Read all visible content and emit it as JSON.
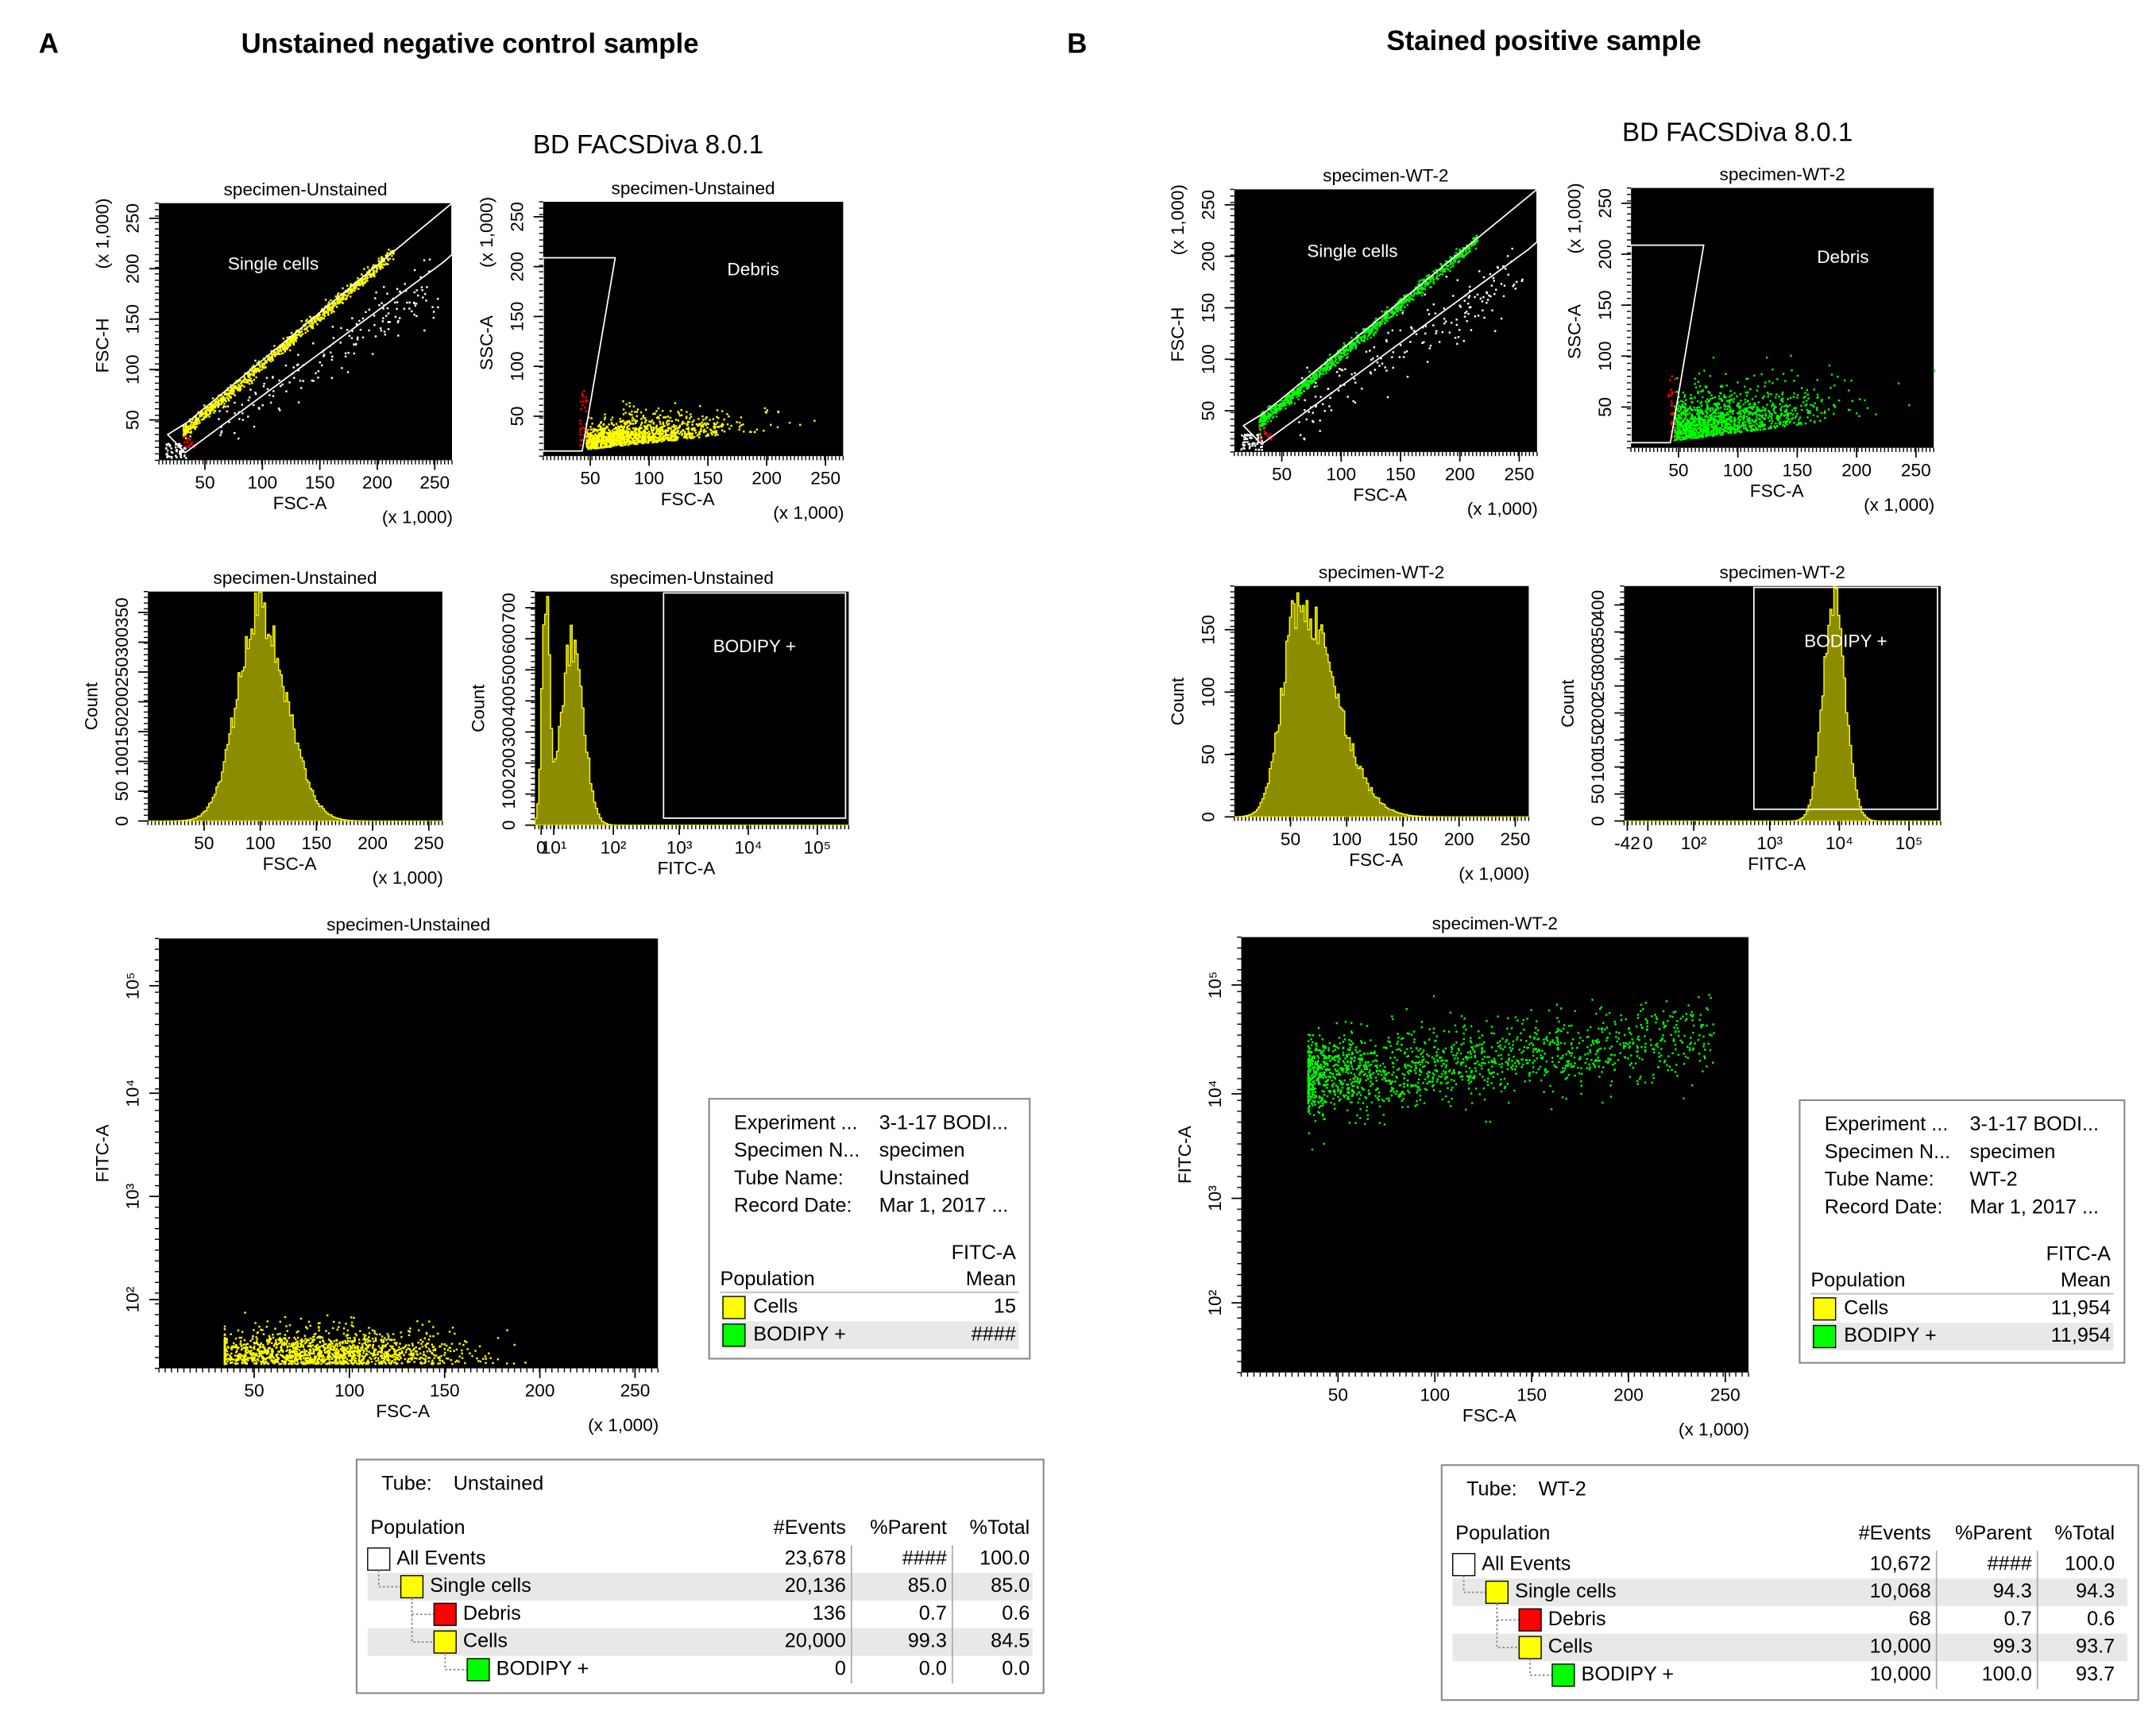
{
  "panels": [
    {
      "letter": "A",
      "title": "Unstained negative control sample",
      "software": "BD FACSDiva 8.0.1",
      "event_color": "#ffff00",
      "plots": [
        {
          "title": "specimen-Unstained",
          "xlabel": "FSC-A",
          "ylabel": "FSC-H",
          "xscale": "(x 1,000)",
          "yscale": "(x 1,000)",
          "xticks": [
            "50",
            "100",
            "150",
            "200",
            "250"
          ],
          "yticks": [
            "50",
            "100",
            "150",
            "200",
            "250"
          ],
          "gate": "Single cells"
        },
        {
          "title": "specimen-Unstained",
          "xlabel": "FSC-A",
          "ylabel": "SSC-A",
          "xscale": "(x 1,000)",
          "yscale": "(x 1,000)",
          "xticks": [
            "50",
            "100",
            "150",
            "200",
            "250"
          ],
          "yticks": [
            "50",
            "100",
            "150",
            "200",
            "250"
          ],
          "gate": "Debris"
        },
        {
          "title": "specimen-Unstained",
          "xlabel": "FSC-A",
          "ylabel": "Count",
          "xscale": "(x 1,000)",
          "xticks": [
            "50",
            "100",
            "150",
            "200",
            "250"
          ],
          "yticks": [
            "0",
            "50",
            "100",
            "150",
            "200",
            "250",
            "300",
            "350"
          ]
        },
        {
          "title": "specimen-Unstained",
          "xlabel": "FITC-A",
          "ylabel": "Count",
          "xticks": [
            "0",
            "10¹",
            "10²",
            "10³",
            "10⁴",
            "10⁵"
          ],
          "yticks": [
            "0",
            "100",
            "200",
            "300",
            "400",
            "500",
            "600",
            "700"
          ],
          "gate": "BODIPY +"
        },
        {
          "title": "specimen-Unstained",
          "xlabel": "FSC-A",
          "ylabel": "FITC-A",
          "xscale": "(x 1,000)",
          "xticks": [
            "50",
            "100",
            "150",
            "200",
            "250"
          ],
          "yticks": [
            "10²",
            "10³",
            "10⁴",
            "10⁵"
          ]
        }
      ],
      "stats": {
        "fields": [
          [
            "Experiment ...",
            "3-1-17 BODI..."
          ],
          [
            "Specimen N...",
            "specimen"
          ],
          [
            "Tube Name:",
            "Unstained"
          ],
          [
            "Record Date:",
            "Mar 1, 2017 ..."
          ]
        ],
        "parameter": "FITC-A",
        "population": "Population",
        "statistic": "Mean",
        "rows": [
          {
            "name": "Cells",
            "color": "#ffff00",
            "value": "15"
          },
          {
            "name": "BODIPY +",
            "color": "#00ff00",
            "value": "####"
          }
        ]
      },
      "hierarchy": {
        "tube_label": "Tube:",
        "tube": "Unstained",
        "columns": [
          "Population",
          "#Events",
          "%Parent",
          "%Total"
        ],
        "rows": [
          {
            "name": "All Events",
            "color": "#ffffff",
            "values": [
              "23,678",
              "####",
              "100.0"
            ]
          },
          {
            "name": "Single cells",
            "color": "#ffff00",
            "values": [
              "20,136",
              "85.0",
              "85.0"
            ]
          },
          {
            "name": "Debris",
            "color": "#ff0000",
            "values": [
              "136",
              "0.7",
              "0.6"
            ]
          },
          {
            "name": "Cells",
            "color": "#ffff00",
            "values": [
              "20,000",
              "99.3",
              "84.5"
            ]
          },
          {
            "name": "BODIPY +",
            "color": "#00ff00",
            "values": [
              "0",
              "0.0",
              "0.0"
            ]
          }
        ]
      }
    },
    {
      "letter": "B",
      "title": "Stained positive sample",
      "software": "BD FACSDiva 8.0.1",
      "event_color": "#00ff00",
      "plots": [
        {
          "title": "specimen-WT-2",
          "xlabel": "FSC-A",
          "ylabel": "FSC-H",
          "xscale": "(x 1,000)",
          "yscale": "(x 1,000)",
          "xticks": [
            "50",
            "100",
            "150",
            "200",
            "250"
          ],
          "yticks": [
            "50",
            "100",
            "150",
            "200",
            "250"
          ],
          "gate": "Single cells"
        },
        {
          "title": "specimen-WT-2",
          "xlabel": "FSC-A",
          "ylabel": "SSC-A",
          "xscale": "(x 1,000)",
          "yscale": "(x 1,000)",
          "xticks": [
            "50",
            "100",
            "150",
            "200",
            "250"
          ],
          "yticks": [
            "50",
            "100",
            "150",
            "200",
            "250"
          ],
          "gate": "Debris"
        },
        {
          "title": "specimen-WT-2",
          "xlabel": "FSC-A",
          "ylabel": "Count",
          "xscale": "(x 1,000)",
          "xticks": [
            "50",
            "100",
            "150",
            "200",
            "250"
          ],
          "yticks": [
            "0",
            "50",
            "100",
            "150"
          ]
        },
        {
          "title": "specimen-WT-2",
          "xlabel": "FITC-A",
          "ylabel": "Count",
          "xticks": [
            "-42",
            "0",
            "10²",
            "10³",
            "10⁴",
            "10⁵"
          ],
          "yticks": [
            "0",
            "50",
            "100",
            "150",
            "200",
            "250",
            "300",
            "350",
            "400"
          ],
          "gate": "BODIPY +"
        },
        {
          "title": "specimen-WT-2",
          "xlabel": "FSC-A",
          "ylabel": "FITC-A",
          "xscale": "(x 1,000)",
          "xticks": [
            "50",
            "100",
            "150",
            "200",
            "250"
          ],
          "yticks": [
            "10²",
            "10³",
            "10⁴",
            "10⁵"
          ]
        }
      ],
      "stats": {
        "fields": [
          [
            "Experiment ...",
            "3-1-17 BODI..."
          ],
          [
            "Specimen N...",
            "specimen"
          ],
          [
            "Tube Name:",
            "WT-2"
          ],
          [
            "Record Date:",
            "Mar 1, 2017 ..."
          ]
        ],
        "parameter": "FITC-A",
        "population": "Population",
        "statistic": "Mean",
        "rows": [
          {
            "name": "Cells",
            "color": "#ffff00",
            "value": "11,954"
          },
          {
            "name": "BODIPY +",
            "color": "#00ff00",
            "value": "11,954"
          }
        ]
      },
      "hierarchy": {
        "tube_label": "Tube:",
        "tube": "WT-2",
        "columns": [
          "Population",
          "#Events",
          "%Parent",
          "%Total"
        ],
        "rows": [
          {
            "name": "All Events",
            "color": "#ffffff",
            "values": [
              "10,672",
              "####",
              "100.0"
            ]
          },
          {
            "name": "Single cells",
            "color": "#ffff00",
            "values": [
              "10,068",
              "94.3",
              "94.3"
            ]
          },
          {
            "name": "Debris",
            "color": "#ff0000",
            "values": [
              "68",
              "0.7",
              "0.6"
            ]
          },
          {
            "name": "Cells",
            "color": "#ffff00",
            "values": [
              "10,000",
              "99.3",
              "93.7"
            ]
          },
          {
            "name": "BODIPY +",
            "color": "#00ff00",
            "values": [
              "10,000",
              "100.0",
              "93.7"
            ]
          }
        ]
      }
    }
  ]
}
